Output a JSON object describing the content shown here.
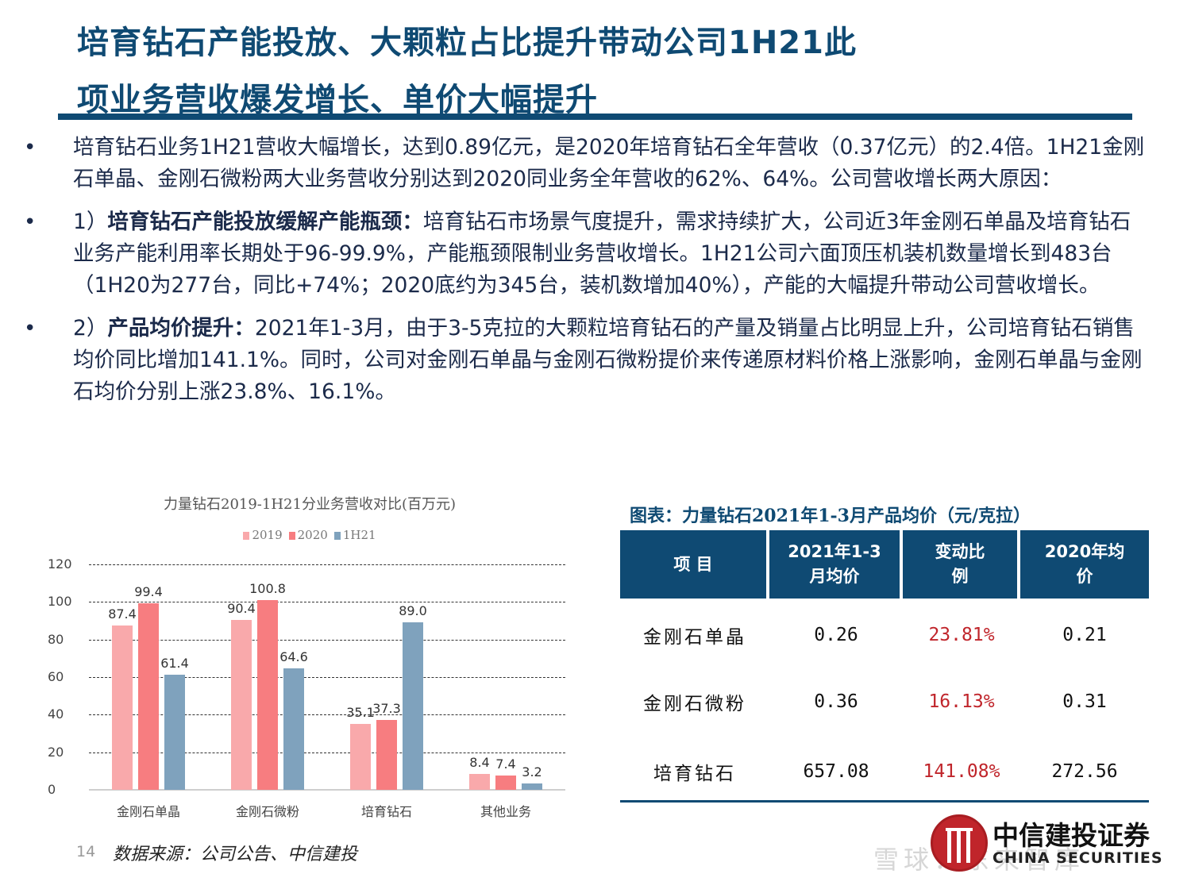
{
  "title": {
    "line1": "培育钻石产能投放、大颗粒占比提升带动公司1H21此",
    "line2": "项业务营收爆发增长、单价大幅提升"
  },
  "bullets": [
    {
      "bold": "",
      "text": "培育钻石业务1H21营收大幅增长，达到0.89亿元，是2020年培育钻石全年营收（0.37亿元）的2.4倍。1H21金刚石单晶、金刚石微粉两大业务营收分别达到2020同业务全年营收的62%、64%。公司营收增长两大原因："
    },
    {
      "prefix": "1）",
      "bold": "培育钻石产能投放缓解产能瓶颈：",
      "text": "培育钻石市场景气度提升，需求持续扩大，公司近3年金刚石单晶及培育钻石业务产能利用率长期处于96-99.9%，产能瓶颈限制业务营收增长。1H21公司六面顶压机装机数量增长到483台（1H20为277台，同比+74%；2020底约为345台，装机数增加40%），产能的大幅提升带动公司营收增长。"
    },
    {
      "prefix": "2）",
      "bold": "产品均价提升：",
      "text": "2021年1-3月，由于3-5克拉的大颗粒培育钻石的产量及销量占比明显上升，公司培育钻石销售均价同比增加141.1%。同时，公司对金刚石单晶与金刚石微粉提价来传递原材料价格上涨影响，金刚石单晶与金刚石均价分别上涨23.8%、16.1%。"
    }
  ],
  "chart_data": {
    "type": "bar",
    "title": "力量钻石2019-1H21分业务营收对比(百万元)",
    "categories": [
      "金刚石单晶",
      "金刚石微粉",
      "培育钻石",
      "其他业务"
    ],
    "series": [
      {
        "name": "2019",
        "color": "#f9a9ab",
        "values": [
          87.4,
          90.4,
          35.1,
          8.4
        ]
      },
      {
        "name": "2020",
        "color": "#f77d80",
        "values": [
          99.4,
          100.8,
          37.3,
          7.4
        ]
      },
      {
        "name": "1H21",
        "color": "#7fa2bd",
        "values": [
          61.4,
          64.6,
          89.0,
          3.2
        ]
      }
    ],
    "value_labels": [
      [
        "87.4",
        "90.4",
        "35.1",
        "8.4"
      ],
      [
        "99.4",
        "100.8",
        "37.3",
        "7.4"
      ],
      [
        "61.4",
        "64.6",
        "89.0",
        "3.2"
      ]
    ],
    "yticks": [
      "0",
      "20",
      "40",
      "60",
      "80",
      "100",
      "120"
    ],
    "ylim": [
      0,
      120
    ],
    "xlabel": "",
    "ylabel": "",
    "grid": true,
    "legend_position": "top"
  },
  "table": {
    "caption": "图表：力量钻石2021年1-3月产品均价（元/克拉）",
    "headers": [
      "项 目",
      "2021年1-3月均价",
      "变动比例",
      "2020年均价"
    ],
    "header_lines": [
      [
        "项 目"
      ],
      [
        "2021年1-3",
        "月均价"
      ],
      [
        "变动比",
        "例"
      ],
      [
        "2020年均",
        "价"
      ]
    ],
    "rows": [
      {
        "item": "金刚石单晶",
        "price_2021q1": "0.26",
        "change": "23.81%",
        "price_2020": "0.21"
      },
      {
        "item": "金刚石微粉",
        "price_2021q1": "0.36",
        "change": "16.13%",
        "price_2020": "0.31"
      },
      {
        "item": "培育钻石",
        "price_2021q1": "657.08",
        "change": "141.08%",
        "price_2020": "272.56"
      }
    ]
  },
  "footer": {
    "page_number": "14",
    "source": "数据来源：公司公告、中信建投"
  },
  "logo": {
    "cn": "中信建投证券",
    "en": "CHINA SECURITIES"
  },
  "watermark": "雪球：东来智库",
  "colors": {
    "primary": "#0f4a73",
    "accent_red": "#c0252b"
  }
}
